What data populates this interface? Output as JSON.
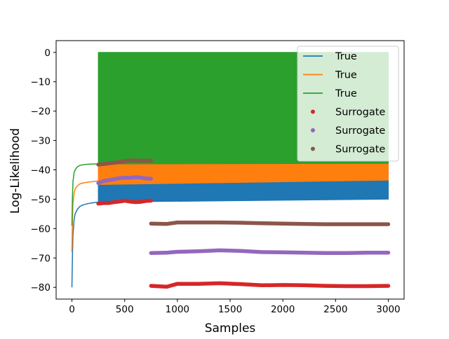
{
  "chart_data": {
    "type": "line",
    "title": "",
    "xlabel": "Samples",
    "ylabel": "Log-Likelihood",
    "xlim": [
      -150,
      3150
    ],
    "ylim": [
      -84,
      4
    ],
    "xticks": [
      0,
      500,
      1000,
      1500,
      2000,
      2500,
      3000
    ],
    "yticks": [
      0,
      -10,
      -20,
      -30,
      -40,
      -50,
      -60,
      -70,
      -80
    ],
    "xtick_labels": [
      "0",
      "500",
      "1000",
      "1500",
      "2000",
      "2500",
      "3000"
    ],
    "ytick_labels": [
      "0",
      "−10",
      "−20",
      "−30",
      "−40",
      "−50",
      "−60",
      "−70",
      "−80"
    ],
    "grid": false,
    "legend_position": "top-right",
    "legend": [
      {
        "label": "True",
        "marker": "line",
        "color": "#1f77b4"
      },
      {
        "label": "True",
        "marker": "line",
        "color": "#ff7f0e"
      },
      {
        "label": "True",
        "marker": "line",
        "color": "#2ca02c"
      },
      {
        "label": "Surrogate",
        "marker": "dot",
        "color": "#d62728"
      },
      {
        "label": "Surrogate",
        "marker": "dot",
        "color": "#9467bd"
      },
      {
        "label": "Surrogate",
        "marker": "dot",
        "color": "#8c564b"
      }
    ],
    "true_series": [
      {
        "name": "True",
        "color": "#1f77b4",
        "curve_x": [
          0,
          5,
          10,
          20,
          30,
          50,
          75,
          100,
          150,
          200,
          250
        ],
        "curve_y": [
          -80,
          -69,
          -62,
          -57,
          -55,
          -53.5,
          -52.5,
          -52,
          -51.5,
          -51.2,
          -51
        ],
        "band_x": [
          250,
          3000
        ],
        "band_low": [
          -51,
          -50
        ],
        "band_high": [
          -45,
          -43.5
        ]
      },
      {
        "name": "True",
        "color": "#ff7f0e",
        "curve_x": [
          0,
          5,
          10,
          20,
          30,
          50,
          75,
          100,
          150,
          200,
          250
        ],
        "curve_y": [
          -68,
          -57,
          -51.5,
          -48,
          -46.5,
          -45.5,
          -44.8,
          -44.5,
          -44.2,
          -44,
          -43.8
        ],
        "band_x": [
          250,
          3000
        ],
        "band_low": [
          -45,
          -43.5
        ],
        "band_high": [
          -38,
          -37.8
        ]
      },
      {
        "name": "True",
        "color": "#2ca02c",
        "curve_x": [
          0,
          5,
          10,
          20,
          30,
          50,
          75,
          100,
          150,
          200,
          250
        ],
        "curve_y": [
          -59,
          -49,
          -44,
          -41,
          -40,
          -39,
          -38.5,
          -38.3,
          -38.1,
          -38,
          -38
        ],
        "band_x": [
          250,
          3000
        ],
        "band_low": [
          -38,
          -37.8
        ],
        "band_high": [
          0,
          0
        ]
      }
    ],
    "surrogate_series": [
      {
        "name": "Surrogate",
        "color": "#d62728",
        "early": {
          "x": [
            250,
            300,
            350,
            400,
            450,
            500,
            550,
            600,
            650,
            700,
            750
          ],
          "y": [
            -51.5,
            -51.3,
            -51.3,
            -51,
            -50.8,
            -50.5,
            -50.8,
            -51,
            -50.9,
            -50.6,
            -50.5
          ]
        },
        "late": {
          "x": [
            750,
            900,
            1000,
            1200,
            1400,
            1600,
            1800,
            2000,
            2200,
            2400,
            2600,
            2800,
            3000
          ],
          "y": [
            -79.5,
            -79.8,
            -78.8,
            -78.8,
            -78.6,
            -78.9,
            -79.3,
            -79.2,
            -79.3,
            -79.5,
            -79.6,
            -79.6,
            -79.5
          ]
        }
      },
      {
        "name": "Surrogate",
        "color": "#9467bd",
        "early": {
          "x": [
            250,
            300,
            350,
            400,
            450,
            500,
            550,
            600,
            650,
            700,
            750
          ],
          "y": [
            -44.5,
            -43.8,
            -43.5,
            -43.2,
            -42.8,
            -42.7,
            -42.7,
            -42.5,
            -42.6,
            -42.9,
            -43
          ]
        },
        "late": {
          "x": [
            750,
            900,
            1000,
            1200,
            1400,
            1600,
            1800,
            2000,
            2200,
            2400,
            2600,
            2800,
            3000
          ],
          "y": [
            -68.3,
            -68.2,
            -67.9,
            -67.7,
            -67.4,
            -67.6,
            -68,
            -68.1,
            -68.2,
            -68.3,
            -68.3,
            -68.2,
            -68.2
          ]
        }
      },
      {
        "name": "Surrogate",
        "color": "#8c564b",
        "early": {
          "x": [
            250,
            300,
            350,
            400,
            450,
            500,
            550,
            600,
            650,
            700,
            750
          ],
          "y": [
            -38.2,
            -38,
            -37.8,
            -37.6,
            -37.3,
            -37,
            -36.8,
            -36.8,
            -36.9,
            -36.9,
            -36.8
          ]
        },
        "late": {
          "x": [
            750,
            900,
            1000,
            1200,
            1400,
            1600,
            1800,
            2000,
            2200,
            2400,
            2600,
            2800,
            3000
          ],
          "y": [
            -58.3,
            -58.4,
            -57.9,
            -57.9,
            -57.9,
            -58,
            -58.2,
            -58.3,
            -58.4,
            -58.5,
            -58.5,
            -58.5,
            -58.5
          ]
        }
      }
    ]
  }
}
